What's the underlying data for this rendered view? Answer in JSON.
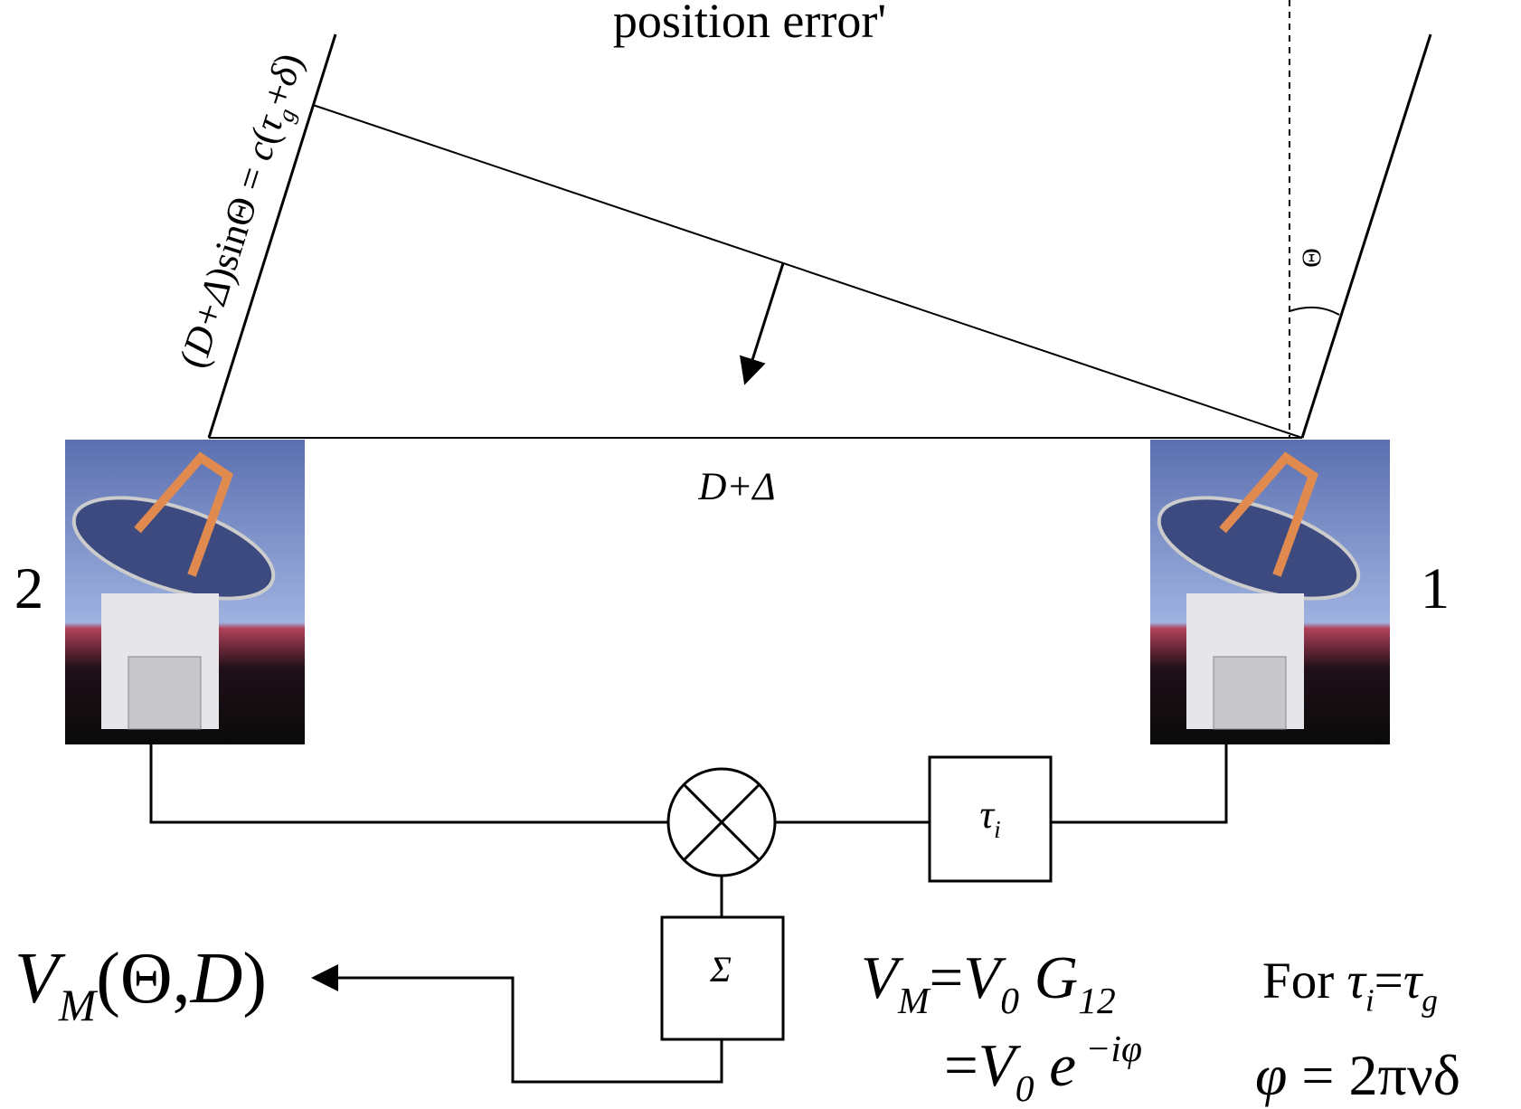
{
  "top_label": "position error'",
  "slant_label": [
    {
      "t": "(",
      "s": "n"
    },
    {
      "t": "D+Δ",
      "s": "i"
    },
    {
      "t": ")sinΘ = ",
      "s": "n"
    },
    {
      "t": "c",
      "s": "i"
    },
    {
      "t": "(",
      "s": "n"
    },
    {
      "t": "τ",
      "s": "i"
    },
    {
      "t": "g",
      "s": "sub"
    },
    {
      "t": "+",
      "s": "n"
    },
    {
      "t": "δ",
      "s": "i"
    },
    {
      "t": ")",
      "s": "n"
    }
  ],
  "angle_label": "Θ",
  "baseline_label": "D+Δ",
  "antenna_labels": [
    "2",
    "1"
  ],
  "delay_box": [
    {
      "t": "τ",
      "s": "i"
    },
    {
      "t": "i",
      "s": "sub"
    }
  ],
  "sum_box": "Σ",
  "output": [
    {
      "t": "V",
      "s": "i"
    },
    {
      "t": "M",
      "s": "sub"
    },
    {
      "t": "(Θ,",
      "s": "n"
    },
    {
      "t": "D",
      "s": "i"
    },
    {
      "t": ")",
      "s": "n"
    }
  ],
  "equation_1": [
    {
      "t": "V",
      "s": "i"
    },
    {
      "t": "M",
      "s": "sub"
    },
    {
      "t": "=",
      "s": "n"
    },
    {
      "t": "V",
      "s": "i"
    },
    {
      "t": "0",
      "s": "sub"
    },
    {
      "t": " G",
      "s": "i"
    },
    {
      "t": "12",
      "s": "sub"
    }
  ],
  "equation_2": [
    {
      "t": "=",
      "s": "n"
    },
    {
      "t": "V",
      "s": "i"
    },
    {
      "t": "0",
      "s": "sub"
    },
    {
      "t": " e",
      "s": "i"
    },
    {
      "t": " −iφ",
      "s": "sup"
    }
  ],
  "condition": [
    {
      "t": "For ",
      "s": "n"
    },
    {
      "t": "τ",
      "s": "i"
    },
    {
      "t": "i",
      "s": "sub"
    },
    {
      "t": "=",
      "s": "n"
    },
    {
      "t": "τ",
      "s": "i"
    },
    {
      "t": "g",
      "s": "sub"
    }
  ],
  "phase": [
    {
      "t": "φ",
      "s": "i"
    },
    {
      "t": " = 2πνδ",
      "s": "n"
    }
  ]
}
